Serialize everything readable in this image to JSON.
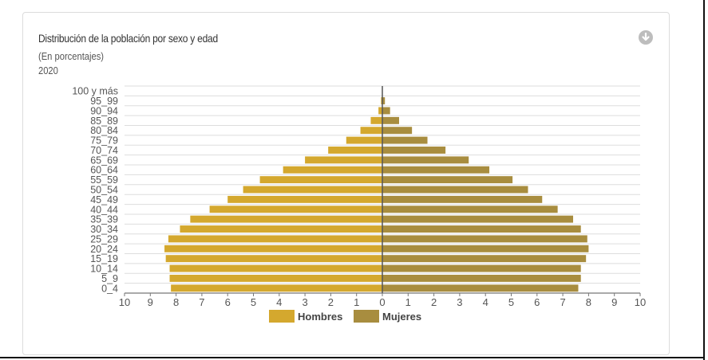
{
  "header": {
    "title": "Distribución de la población por sexo y edad",
    "subtitle": "(En porcentajes)",
    "year": "2020"
  },
  "icons": {
    "download": "download-arrow-icon"
  },
  "chart_data": {
    "type": "bar",
    "orientation": "horizontal-population-pyramid",
    "categories": [
      "100 y más",
      "95_99",
      "90_94",
      "85_89",
      "80_84",
      "75_79",
      "70_74",
      "65_69",
      "60_64",
      "55_59",
      "50_54",
      "45_49",
      "40_44",
      "35_39",
      "30_34",
      "25_29",
      "20_24",
      "15_19",
      "10_14",
      "5_9",
      "0_4"
    ],
    "series": [
      {
        "name": "Hombres",
        "color": "#d4a82e",
        "values": [
          0.0,
          0.05,
          0.15,
          0.45,
          0.85,
          1.4,
          2.1,
          3.0,
          3.85,
          4.75,
          5.4,
          6.0,
          6.7,
          7.45,
          7.85,
          8.3,
          8.45,
          8.4,
          8.25,
          8.25,
          8.2
        ]
      },
      {
        "name": "Mujeres",
        "color": "#a88d3f",
        "values": [
          0.0,
          0.1,
          0.3,
          0.65,
          1.15,
          1.75,
          2.45,
          3.35,
          4.15,
          5.05,
          5.65,
          6.2,
          6.8,
          7.4,
          7.7,
          7.95,
          8.0,
          7.9,
          7.7,
          7.7,
          7.6
        ]
      }
    ],
    "xticks": [
      "10",
      "9",
      "8",
      "7",
      "6",
      "5",
      "4",
      "3",
      "2",
      "1",
      "0",
      "1",
      "2",
      "3",
      "4",
      "5",
      "6",
      "7",
      "8",
      "9",
      "10"
    ],
    "xlim": [
      -10,
      10
    ],
    "grid": true,
    "legend": "bottom-center"
  }
}
